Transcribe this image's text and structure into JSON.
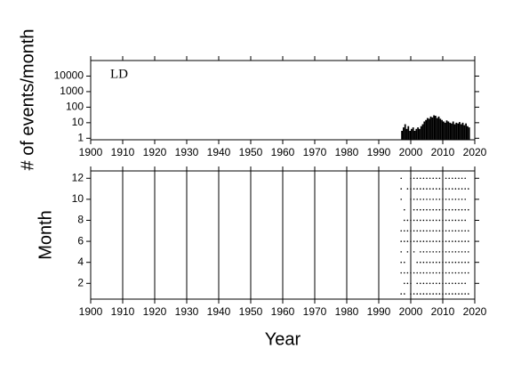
{
  "chart_data": [
    {
      "type": "histogram",
      "annotation": "LD",
      "ylabel": "# of events/month",
      "log_y": true,
      "color": "#000000",
      "bins": [
        1997,
        1997.5,
        1998,
        1998.5,
        1999,
        1999.5,
        2000,
        2000.5,
        2001,
        2001.5,
        2002,
        2002.5,
        2003,
        2003.5,
        2004,
        2004.5,
        2005,
        2005.5,
        2006,
        2006.5,
        2007,
        2007.5,
        2008,
        2008.5,
        2009,
        2009.5,
        2010,
        2010.5,
        2011,
        2011.5,
        2012,
        2012.5,
        2013,
        2013.5,
        2014,
        2014.5,
        2015,
        2015.5,
        2016,
        2016.5,
        2017,
        2017.5,
        2018,
        2018.5
      ],
      "values": [
        3,
        5,
        8,
        4,
        6,
        3,
        4,
        5,
        3,
        4,
        5,
        4,
        6,
        8,
        12,
        15,
        20,
        18,
        25,
        22,
        30,
        28,
        20,
        25,
        18,
        15,
        12,
        10,
        14,
        12,
        10,
        9,
        12,
        8,
        10,
        9,
        11,
        8,
        10,
        7,
        9,
        6,
        5
      ],
      "xlim": [
        1900,
        2020
      ],
      "xticks": [
        1900,
        1910,
        1920,
        1930,
        1940,
        1950,
        1960,
        1970,
        1980,
        1990,
        2000,
        2010,
        2020
      ],
      "ylim": [
        0.8,
        100000
      ],
      "yticks": [
        1,
        10,
        100,
        1000,
        10000
      ],
      "grid": false
    },
    {
      "type": "dots",
      "xlabel": "Year",
      "ylabel": "Month",
      "color": "#000000",
      "rows": [
        {
          "month": 12,
          "years": [
            1997,
            2000,
            2001,
            2002,
            2003,
            2004,
            2005,
            2006,
            2007,
            2008,
            2009,
            2011,
            2012,
            2013,
            2014,
            2015,
            2016,
            2017
          ]
        },
        {
          "month": 11,
          "years": [
            1997,
            1999,
            2000,
            2001,
            2002,
            2003,
            2004,
            2005,
            2006,
            2007,
            2008,
            2009,
            2010,
            2011,
            2012,
            2013,
            2014,
            2015,
            2016,
            2017,
            2018
          ]
        },
        {
          "month": 10,
          "years": [
            1997,
            2000,
            2001,
            2002,
            2003,
            2004,
            2005,
            2006,
            2007,
            2008,
            2009,
            2010,
            2011,
            2012,
            2013,
            2014,
            2015,
            2016,
            2017
          ]
        },
        {
          "month": 9,
          "years": [
            1998,
            2001,
            2002,
            2003,
            2004,
            2005,
            2006,
            2007,
            2008,
            2009,
            2010,
            2011,
            2012,
            2013,
            2014,
            2015,
            2016,
            2017,
            2018
          ]
        },
        {
          "month": 8,
          "years": [
            1998,
            1999,
            2000,
            2001,
            2002,
            2003,
            2004,
            2005,
            2006,
            2007,
            2008,
            2009,
            2010,
            2011,
            2012,
            2013,
            2014,
            2015,
            2016,
            2017
          ]
        },
        {
          "month": 7,
          "years": [
            1997,
            1998,
            1999,
            2000,
            2001,
            2002,
            2003,
            2004,
            2005,
            2006,
            2007,
            2008,
            2009,
            2010,
            2011,
            2012,
            2013,
            2014,
            2015,
            2016,
            2017,
            2018
          ]
        },
        {
          "month": 6,
          "years": [
            1997,
            1998,
            1999,
            2000,
            2001,
            2002,
            2003,
            2004,
            2005,
            2006,
            2007,
            2008,
            2009,
            2010,
            2011,
            2012,
            2013,
            2014,
            2015,
            2016,
            2017,
            2018
          ]
        },
        {
          "month": 5,
          "years": [
            1997,
            1999,
            2001,
            2003,
            2004,
            2005,
            2006,
            2007,
            2008,
            2009,
            2010,
            2011,
            2012,
            2013,
            2014,
            2015,
            2016,
            2017,
            2018
          ]
        },
        {
          "month": 4,
          "years": [
            1997,
            1998,
            2002,
            2003,
            2004,
            2005,
            2006,
            2007,
            2008,
            2009,
            2010,
            2011,
            2012,
            2013,
            2014,
            2015,
            2016,
            2017,
            2018
          ]
        },
        {
          "month": 3,
          "years": [
            1997,
            1998,
            1999,
            2000,
            2001,
            2002,
            2003,
            2004,
            2005,
            2006,
            2007,
            2008,
            2009,
            2010,
            2011,
            2012,
            2013,
            2014,
            2015,
            2016,
            2017,
            2018
          ]
        },
        {
          "month": 2,
          "years": [
            1998,
            1999,
            2000,
            2002,
            2003,
            2004,
            2005,
            2006,
            2007,
            2008,
            2009,
            2010,
            2011,
            2012,
            2013,
            2014,
            2015,
            2016,
            2017
          ]
        },
        {
          "month": 1,
          "years": [
            1997,
            1998,
            2000,
            2001,
            2002,
            2003,
            2004,
            2005,
            2006,
            2007,
            2008,
            2009,
            2010,
            2011,
            2012,
            2013,
            2014,
            2015,
            2016,
            2017,
            2018
          ]
        }
      ],
      "xlim": [
        1900,
        2020
      ],
      "xticks": [
        1900,
        1910,
        1920,
        1930,
        1940,
        1950,
        1960,
        1970,
        1980,
        1990,
        2000,
        2010,
        2020
      ],
      "ylim": [
        0.5,
        12.7
      ],
      "yticks": [
        2,
        4,
        6,
        8,
        10,
        12
      ],
      "grid": true
    }
  ]
}
